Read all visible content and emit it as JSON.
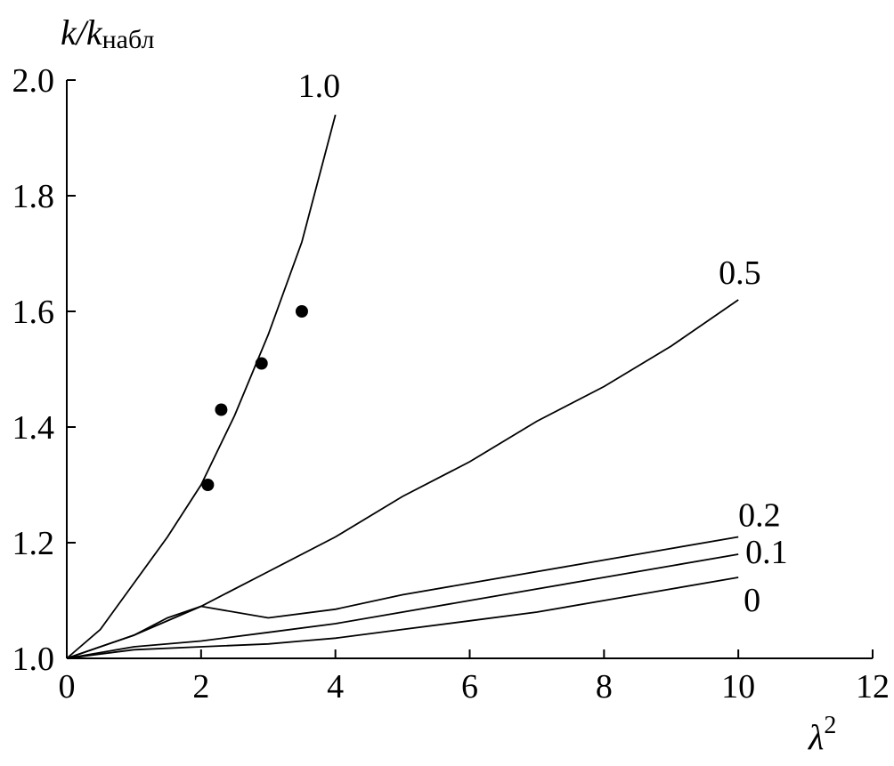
{
  "chart_data": {
    "type": "line",
    "title": "",
    "xlabel": "λ",
    "xlabel_sup": "2",
    "ylabel": "k/k",
    "ylabel_sub": "набл",
    "xlim": [
      0,
      12
    ],
    "ylim": [
      1.0,
      2.0
    ],
    "x_ticks": [
      "0",
      "2",
      "4",
      "6",
      "8",
      "10",
      "12"
    ],
    "y_ticks": [
      "1.0",
      "1.2",
      "1.4",
      "1.6",
      "1.8",
      "2.0"
    ],
    "grid": false,
    "series": [
      {
        "name": "1.0",
        "x": [
          0,
          0.5,
          1,
          1.5,
          2,
          2.5,
          3,
          3.5,
          4
        ],
        "y": [
          1.0,
          1.05,
          1.13,
          1.21,
          1.3,
          1.42,
          1.56,
          1.72,
          1.94
        ]
      },
      {
        "name": "0.5",
        "x": [
          0,
          1,
          2,
          3,
          4,
          5,
          6,
          7,
          8,
          9,
          10
        ],
        "y": [
          1.0,
          1.04,
          1.09,
          1.15,
          1.21,
          1.28,
          1.34,
          1.41,
          1.47,
          1.54,
          1.62
        ]
      },
      {
        "name": "0.2",
        "x": [
          0,
          1,
          1.5,
          2,
          3,
          4,
          5,
          6,
          7,
          8,
          9,
          10
        ],
        "y": [
          1.0,
          1.04,
          1.07,
          1.09,
          1.07,
          1.085,
          1.11,
          1.13,
          1.15,
          1.17,
          1.19,
          1.21
        ]
      },
      {
        "name": "0.1",
        "x": [
          0,
          1,
          2,
          3,
          4,
          5,
          6,
          7,
          8,
          9,
          10
        ],
        "y": [
          1.0,
          1.02,
          1.03,
          1.045,
          1.06,
          1.08,
          1.1,
          1.12,
          1.14,
          1.16,
          1.18
        ]
      },
      {
        "name": "0",
        "x": [
          0,
          1,
          2,
          3,
          3.5,
          4,
          5,
          6,
          7,
          8,
          9,
          10
        ],
        "y": [
          1.0,
          1.015,
          1.02,
          1.025,
          1.03,
          1.035,
          1.05,
          1.065,
          1.08,
          1.1,
          1.12,
          1.14
        ]
      }
    ],
    "points": {
      "x": [
        2.1,
        2.3,
        2.9,
        3.5
      ],
      "y": [
        1.3,
        1.43,
        1.51,
        1.6
      ]
    }
  }
}
